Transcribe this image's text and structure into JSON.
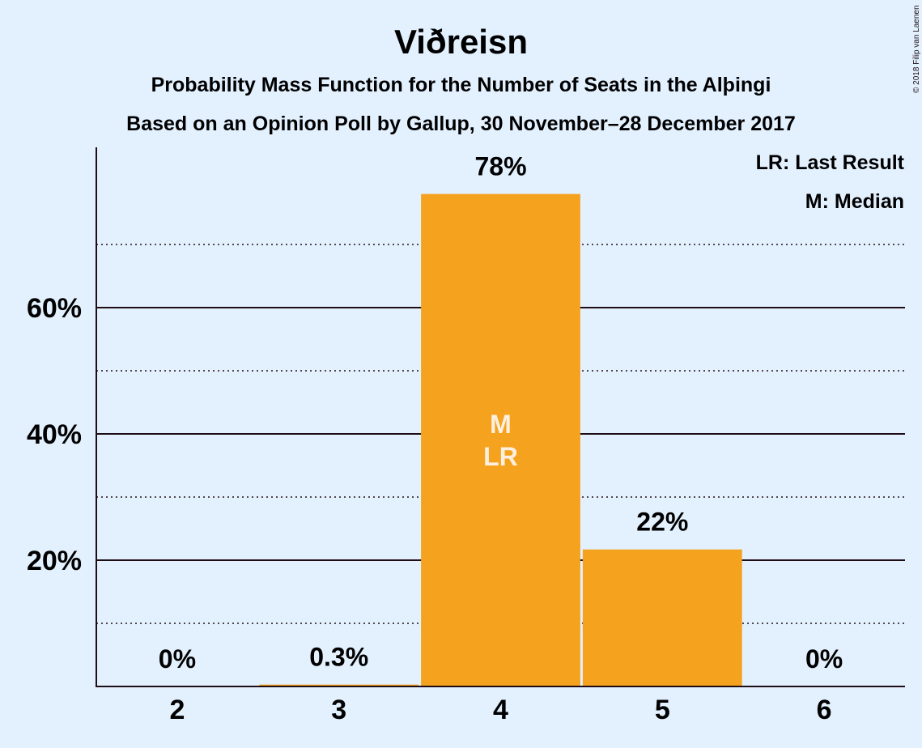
{
  "chart_data": {
    "type": "bar",
    "title": "Viðreisn",
    "subtitle_lines": [
      "Probability Mass Function for the Number of Seats in the Alþingi",
      "Based on an Opinion Poll by Gallup, 30 November–28 December 2017"
    ],
    "categories": [
      "2",
      "3",
      "4",
      "5",
      "6"
    ],
    "values": [
      0,
      0.3,
      78,
      21.7,
      0
    ],
    "data_labels": [
      "0%",
      "0.3%",
      "78%",
      "22%",
      "0%"
    ],
    "bar_annotations": [
      {
        "category": "4",
        "lines": [
          "M",
          "LR"
        ]
      }
    ],
    "y_ticks": [
      20,
      40,
      60
    ],
    "y_tick_labels": [
      "20%",
      "40%",
      "60%"
    ],
    "y_minor_gridlines": [
      10,
      30,
      50,
      70
    ],
    "ylim": [
      0,
      85
    ],
    "grid": true,
    "legend": {
      "position": "top-right",
      "entries": [
        "LR: Last Result",
        "M: Median"
      ]
    },
    "colors": {
      "background": "#e3f1ff",
      "bar": "#f5a31e",
      "text": "#1e0d14",
      "inbar_text": "#fdf0e0"
    },
    "copyright": "© 2018 Filip van Laenen"
  }
}
